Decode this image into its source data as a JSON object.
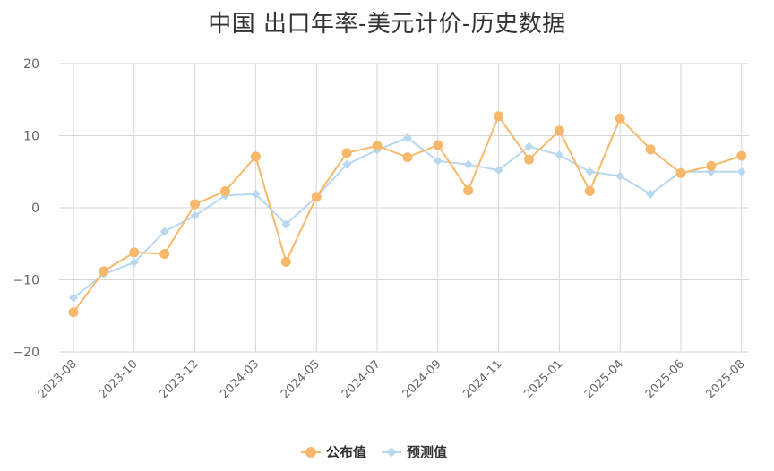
{
  "chart_data": {
    "type": "line",
    "title": "中国 出口年率-美元计价-历史数据",
    "xlabel": "",
    "ylabel": "",
    "ylim": [
      -20,
      20
    ],
    "yticks": [
      20,
      10,
      0,
      -10,
      -20
    ],
    "ytick_labels": [
      "20",
      "10",
      "0",
      "−10",
      "−20"
    ],
    "x": [
      "2023-08",
      "2023-09",
      "2023-10",
      "2023-11",
      "2023-12",
      "2024-01",
      "2024-03",
      "2024-04",
      "2024-05",
      "2024-06",
      "2024-07",
      "2024-08",
      "2024-09",
      "2024-10",
      "2024-11",
      "2024-12",
      "2025-01",
      "2025-03",
      "2025-04",
      "2025-05",
      "2025-06",
      "2025-07",
      "2025-08"
    ],
    "x_tick_labels": [
      "2023-08",
      "2023-10",
      "2023-12",
      "2024-03",
      "2024-05",
      "2024-07",
      "2024-09",
      "2024-11",
      "2025-01",
      "2025-04",
      "2025-06",
      "2025-08"
    ],
    "x_tick_indices": [
      0,
      2,
      4,
      6,
      8,
      10,
      12,
      14,
      16,
      18,
      20,
      22
    ],
    "grid": true,
    "legend_position": "bottom-center",
    "series": [
      {
        "name": "公布值",
        "color": "#f7b86b",
        "marker": "circle",
        "values": [
          -14.5,
          -8.8,
          -6.2,
          -6.4,
          0.5,
          2.3,
          7.1,
          -7.5,
          1.5,
          7.6,
          8.6,
          7.0,
          8.7,
          2.4,
          12.7,
          6.7,
          10.7,
          2.3,
          12.4,
          8.1,
          4.8,
          5.8,
          7.2
        ]
      },
      {
        "name": "预测值",
        "color": "#b8d8f0",
        "marker": "diamond",
        "values": [
          -12.5,
          -9.2,
          -7.6,
          -3.3,
          -1.1,
          1.7,
          1.9,
          -2.3,
          1.5,
          6.0,
          8.0,
          9.7,
          6.5,
          6.0,
          5.2,
          8.5,
          7.3,
          5.0,
          4.4,
          1.9,
          5.0,
          5.0,
          5.0
        ]
      }
    ]
  }
}
